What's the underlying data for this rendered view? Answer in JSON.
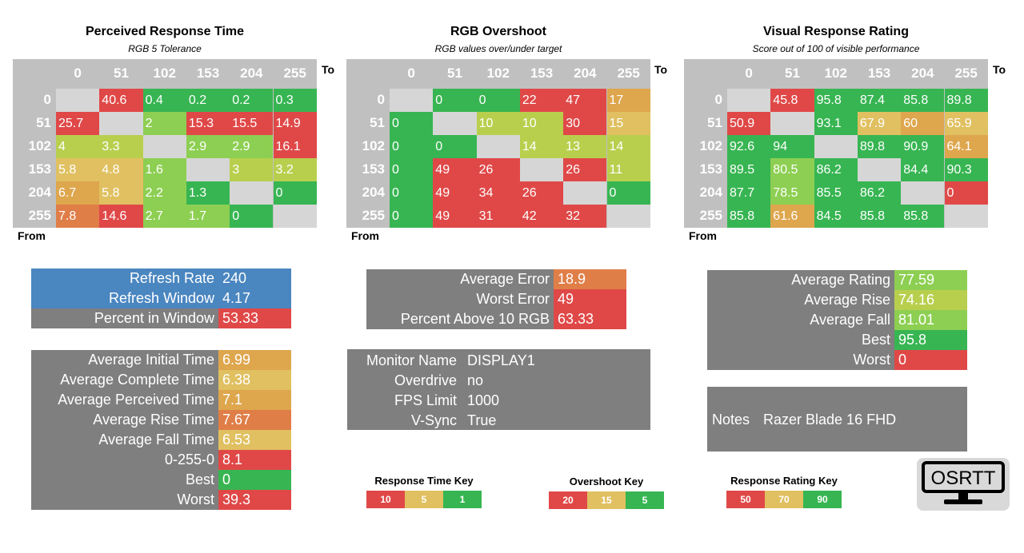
{
  "colors": {
    "red": "#e04848",
    "orange": "#e07e48",
    "amber": "#dea64d",
    "yellow": "#e0c060",
    "yellowgreen": "#b8cf4e",
    "lightgreen": "#8dcf52",
    "green": "#37b552",
    "gray": "#7f7f7f",
    "blue": "#4a86c0",
    "diag": "#d6d6d6",
    "header": "#c0c0c0"
  },
  "matrices": [
    {
      "title": "Perceived Response Time",
      "subtitle": "RGB 5 Tolerance",
      "to_label": "To",
      "from_label": "From",
      "cols": [
        "0",
        "51",
        "102",
        "153",
        "204",
        "255"
      ],
      "rows": [
        "0",
        "51",
        "102",
        "153",
        "204",
        "255"
      ],
      "cells": [
        [
          {
            "v": "",
            "c": "diag"
          },
          {
            "v": "40.6",
            "c": "red"
          },
          {
            "v": "0.4",
            "c": "green"
          },
          {
            "v": "0.2",
            "c": "green"
          },
          {
            "v": "0.2",
            "c": "green"
          },
          {
            "v": "0.3",
            "c": "green"
          }
        ],
        [
          {
            "v": "25.7",
            "c": "red"
          },
          {
            "v": "",
            "c": "diag"
          },
          {
            "v": "2",
            "c": "lightgreen"
          },
          {
            "v": "15.3",
            "c": "red"
          },
          {
            "v": "15.5",
            "c": "red"
          },
          {
            "v": "14.9",
            "c": "red"
          }
        ],
        [
          {
            "v": "4",
            "c": "yellowgreen"
          },
          {
            "v": "3.3",
            "c": "yellowgreen"
          },
          {
            "v": "",
            "c": "diag"
          },
          {
            "v": "2.9",
            "c": "lightgreen"
          },
          {
            "v": "2.9",
            "c": "lightgreen"
          },
          {
            "v": "16.1",
            "c": "red"
          }
        ],
        [
          {
            "v": "5.8",
            "c": "yellow"
          },
          {
            "v": "4.8",
            "c": "yellow"
          },
          {
            "v": "1.6",
            "c": "lightgreen"
          },
          {
            "v": "",
            "c": "diag"
          },
          {
            "v": "3",
            "c": "yellowgreen"
          },
          {
            "v": "3.2",
            "c": "yellowgreen"
          }
        ],
        [
          {
            "v": "6.7",
            "c": "amber"
          },
          {
            "v": "5.8",
            "c": "yellow"
          },
          {
            "v": "2.2",
            "c": "lightgreen"
          },
          {
            "v": "1.3",
            "c": "green"
          },
          {
            "v": "",
            "c": "diag"
          },
          {
            "v": "0",
            "c": "green"
          }
        ],
        [
          {
            "v": "7.8",
            "c": "orange"
          },
          {
            "v": "14.6",
            "c": "red"
          },
          {
            "v": "2.7",
            "c": "lightgreen"
          },
          {
            "v": "1.7",
            "c": "lightgreen"
          },
          {
            "v": "0",
            "c": "green"
          },
          {
            "v": "",
            "c": "diag"
          }
        ]
      ]
    },
    {
      "title": "RGB Overshoot",
      "subtitle": "RGB values over/under target",
      "to_label": "To",
      "from_label": "From",
      "cols": [
        "0",
        "51",
        "102",
        "153",
        "204",
        "255"
      ],
      "rows": [
        "0",
        "51",
        "102",
        "153",
        "204",
        "255"
      ],
      "cells": [
        [
          {
            "v": "",
            "c": "diag"
          },
          {
            "v": "0",
            "c": "green"
          },
          {
            "v": "0",
            "c": "green"
          },
          {
            "v": "22",
            "c": "red"
          },
          {
            "v": "47",
            "c": "red"
          },
          {
            "v": "17",
            "c": "amber"
          }
        ],
        [
          {
            "v": "0",
            "c": "green"
          },
          {
            "v": "",
            "c": "diag"
          },
          {
            "v": "10",
            "c": "yellowgreen"
          },
          {
            "v": "10",
            "c": "yellowgreen"
          },
          {
            "v": "30",
            "c": "red"
          },
          {
            "v": "15",
            "c": "yellow"
          }
        ],
        [
          {
            "v": "0",
            "c": "green"
          },
          {
            "v": "0",
            "c": "green"
          },
          {
            "v": "",
            "c": "diag"
          },
          {
            "v": "14",
            "c": "yellowgreen"
          },
          {
            "v": "13",
            "c": "yellowgreen"
          },
          {
            "v": "14",
            "c": "yellowgreen"
          }
        ],
        [
          {
            "v": "0",
            "c": "green"
          },
          {
            "v": "49",
            "c": "red"
          },
          {
            "v": "26",
            "c": "red"
          },
          {
            "v": "",
            "c": "diag"
          },
          {
            "v": "26",
            "c": "red"
          },
          {
            "v": "11",
            "c": "yellowgreen"
          }
        ],
        [
          {
            "v": "0",
            "c": "green"
          },
          {
            "v": "49",
            "c": "red"
          },
          {
            "v": "34",
            "c": "red"
          },
          {
            "v": "26",
            "c": "red"
          },
          {
            "v": "",
            "c": "diag"
          },
          {
            "v": "0",
            "c": "green"
          }
        ],
        [
          {
            "v": "0",
            "c": "green"
          },
          {
            "v": "49",
            "c": "red"
          },
          {
            "v": "31",
            "c": "red"
          },
          {
            "v": "42",
            "c": "red"
          },
          {
            "v": "32",
            "c": "red"
          },
          {
            "v": "",
            "c": "diag"
          }
        ]
      ]
    },
    {
      "title": "Visual Response Rating",
      "subtitle": "Score out of 100 of visible performance",
      "to_label": "To",
      "from_label": "From",
      "cols": [
        "0",
        "51",
        "102",
        "153",
        "204",
        "255"
      ],
      "rows": [
        "0",
        "51",
        "102",
        "153",
        "204",
        "255"
      ],
      "cells": [
        [
          {
            "v": "",
            "c": "diag"
          },
          {
            "v": "45.8",
            "c": "red"
          },
          {
            "v": "95.8",
            "c": "green"
          },
          {
            "v": "87.4",
            "c": "green"
          },
          {
            "v": "85.8",
            "c": "green"
          },
          {
            "v": "89.8",
            "c": "green"
          }
        ],
        [
          {
            "v": "50.9",
            "c": "red"
          },
          {
            "v": "",
            "c": "diag"
          },
          {
            "v": "93.1",
            "c": "green"
          },
          {
            "v": "67.9",
            "c": "yellow"
          },
          {
            "v": "60",
            "c": "amber"
          },
          {
            "v": "65.9",
            "c": "yellow"
          }
        ],
        [
          {
            "v": "92.6",
            "c": "green"
          },
          {
            "v": "94",
            "c": "green"
          },
          {
            "v": "",
            "c": "diag"
          },
          {
            "v": "89.8",
            "c": "green"
          },
          {
            "v": "90.9",
            "c": "green"
          },
          {
            "v": "64.1",
            "c": "amber"
          }
        ],
        [
          {
            "v": "89.5",
            "c": "green"
          },
          {
            "v": "80.5",
            "c": "lightgreen"
          },
          {
            "v": "86.2",
            "c": "green"
          },
          {
            "v": "",
            "c": "diag"
          },
          {
            "v": "84.4",
            "c": "green"
          },
          {
            "v": "90.3",
            "c": "green"
          }
        ],
        [
          {
            "v": "87.7",
            "c": "green"
          },
          {
            "v": "78.5",
            "c": "lightgreen"
          },
          {
            "v": "85.5",
            "c": "green"
          },
          {
            "v": "86.2",
            "c": "green"
          },
          {
            "v": "",
            "c": "diag"
          },
          {
            "v": "0",
            "c": "red"
          }
        ],
        [
          {
            "v": "85.8",
            "c": "green"
          },
          {
            "v": "61.6",
            "c": "amber"
          },
          {
            "v": "84.5",
            "c": "green"
          },
          {
            "v": "85.8",
            "c": "green"
          },
          {
            "v": "85.8",
            "c": "green"
          },
          {
            "v": "",
            "c": "diag"
          }
        ]
      ]
    }
  ],
  "refresh": {
    "rows": [
      {
        "label": "Refresh Rate",
        "value": "240",
        "lc": "blue",
        "vc": "blue"
      },
      {
        "label": "Refresh Window",
        "value": "4.17",
        "lc": "blue",
        "vc": "blue"
      },
      {
        "label": "Percent in Window",
        "value": "53.33",
        "lc": "gray",
        "vc": "red"
      }
    ]
  },
  "times": {
    "rows": [
      {
        "label": "Average Initial Time",
        "value": "6.99",
        "vc": "amber"
      },
      {
        "label": "Average Complete Time",
        "value": "6.38",
        "vc": "yellow"
      },
      {
        "label": "Average Perceived Time",
        "value": "7.1",
        "vc": "amber"
      },
      {
        "label": "Average Rise Time",
        "value": "7.67",
        "vc": "orange"
      },
      {
        "label": "Average Fall Time",
        "value": "6.53",
        "vc": "yellow"
      },
      {
        "label": "0-255-0",
        "value": "8.1",
        "vc": "red"
      },
      {
        "label": "Best",
        "value": "0",
        "vc": "green"
      },
      {
        "label": "Worst",
        "value": "39.3",
        "vc": "red"
      }
    ]
  },
  "errors": {
    "rows": [
      {
        "label": "Average Error",
        "value": "18.9",
        "vc": "orange"
      },
      {
        "label": "Worst Error",
        "value": "49",
        "vc": "red"
      },
      {
        "label": "Percent Above 10 RGB",
        "value": "63.33",
        "vc": "red"
      }
    ]
  },
  "monitor": {
    "rows": [
      {
        "label": "Monitor Name",
        "value": "DISPLAY1"
      },
      {
        "label": "Overdrive",
        "value": "no"
      },
      {
        "label": "FPS Limit",
        "value": "1000"
      },
      {
        "label": "V-Sync",
        "value": "True"
      }
    ]
  },
  "ratings": {
    "rows": [
      {
        "label": "Average Rating",
        "value": "77.59",
        "vc": "lightgreen"
      },
      {
        "label": "Average Rise",
        "value": "74.16",
        "vc": "yellowgreen"
      },
      {
        "label": "Average Fall",
        "value": "81.01",
        "vc": "lightgreen"
      },
      {
        "label": "Best",
        "value": "95.8",
        "vc": "green"
      },
      {
        "label": "Worst",
        "value": "0",
        "vc": "red"
      }
    ]
  },
  "notes": {
    "label": "Notes",
    "value": "Razer Blade 16 FHD"
  },
  "keys": [
    {
      "title": "Response Time Key",
      "items": [
        {
          "v": "10",
          "c": "red"
        },
        {
          "v": "5",
          "c": "yellow"
        },
        {
          "v": "1",
          "c": "green"
        }
      ]
    },
    {
      "title": "Overshoot Key",
      "items": [
        {
          "v": "20",
          "c": "red"
        },
        {
          "v": "15",
          "c": "yellow"
        },
        {
          "v": "5",
          "c": "green"
        }
      ]
    },
    {
      "title": "Response Rating Key",
      "items": [
        {
          "v": "50",
          "c": "red"
        },
        {
          "v": "70",
          "c": "yellow"
        },
        {
          "v": "90",
          "c": "green"
        }
      ]
    }
  ],
  "logo": {
    "text": "OSRTT",
    "icon": "monitor-icon"
  }
}
